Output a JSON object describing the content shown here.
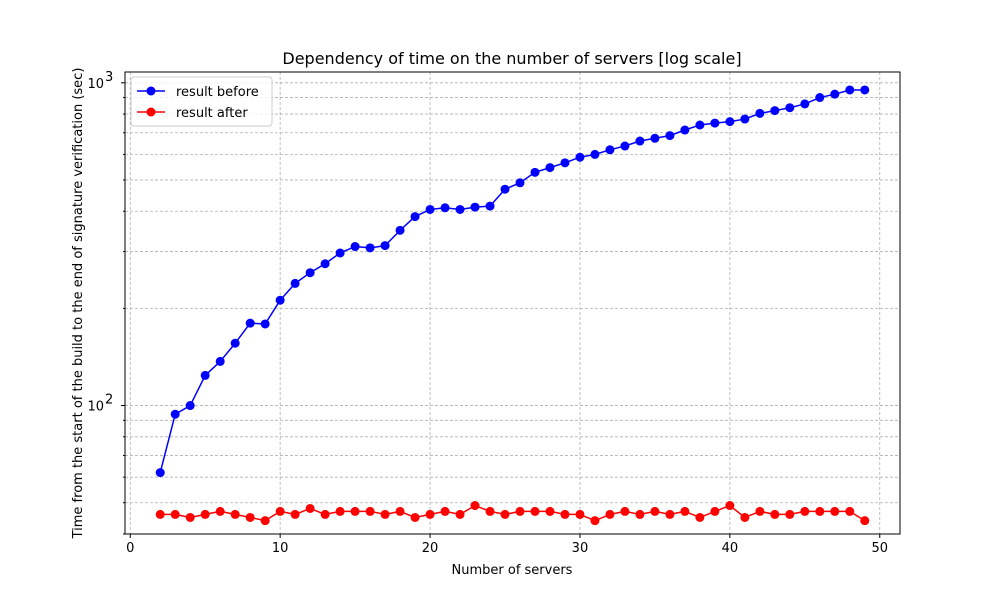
{
  "chart_data": {
    "type": "line",
    "title": "Dependency of time on the number of servers [log scale]",
    "xlabel": "Number of servers",
    "ylabel": "Time from the start of the build to the end of signature verification (sec)",
    "xlim": [
      -0.35,
      51.35
    ],
    "ylim": [
      40,
      1080
    ],
    "yscale": "log",
    "grid": true,
    "legend_position": "upper left",
    "x_ticks": [
      0,
      10,
      20,
      30,
      40,
      50
    ],
    "x_tick_labels": [
      "0",
      "10",
      "20",
      "30",
      "40",
      "50"
    ],
    "y_major_ticks": [
      100,
      1000
    ],
    "y_tick_labels": [
      "10",
      "10"
    ],
    "y_tick_exponents": [
      "2",
      "3"
    ],
    "x": [
      2,
      3,
      4,
      5,
      6,
      7,
      8,
      9,
      10,
      11,
      12,
      13,
      14,
      15,
      16,
      17,
      18,
      19,
      20,
      21,
      22,
      23,
      24,
      25,
      26,
      27,
      28,
      29,
      30,
      31,
      32,
      33,
      34,
      35,
      36,
      37,
      38,
      39,
      40,
      41,
      42,
      43,
      44,
      45,
      46,
      47,
      48,
      49
    ],
    "series": [
      {
        "name": "result before",
        "color": "#0000ff",
        "values": [
          62,
          94,
          100,
          124,
          137,
          156,
          180,
          179,
          212,
          239,
          258,
          275,
          297,
          311,
          308,
          313,
          349,
          385,
          405,
          410,
          405,
          412,
          415,
          468,
          490,
          528,
          546,
          565,
          588,
          600,
          620,
          637,
          660,
          673,
          686,
          714,
          740,
          750,
          758,
          772,
          804,
          820,
          837,
          860,
          900,
          922,
          950,
          950
        ]
      },
      {
        "name": "result after",
        "color": "#ff0000",
        "values": [
          46,
          46,
          45,
          46,
          47,
          46,
          45,
          44,
          47,
          46,
          48,
          46,
          47,
          47,
          47,
          46,
          47,
          45,
          46,
          47,
          46,
          49,
          47,
          46,
          47,
          47,
          47,
          46,
          46,
          44,
          46,
          47,
          46,
          47,
          46,
          47,
          45,
          47,
          49,
          45,
          47,
          46,
          46,
          47,
          47,
          47,
          47,
          44
        ]
      }
    ]
  }
}
